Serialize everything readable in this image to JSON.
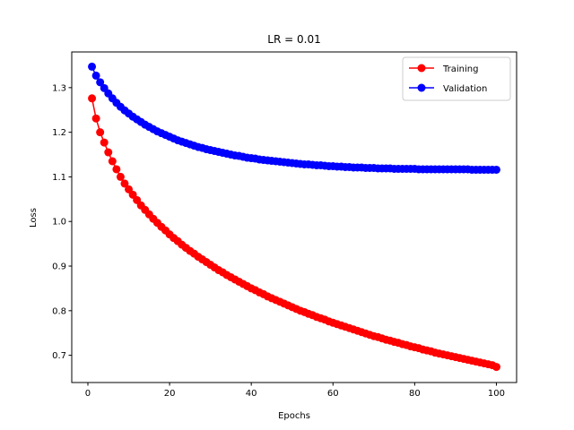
{
  "chart_data": {
    "type": "line",
    "title": "LR = 0.01",
    "xlabel": "Epochs",
    "ylabel": "Loss",
    "xlim": [
      -3.95,
      104.95
    ],
    "ylim": [
      0.639,
      1.38
    ],
    "xticks": [
      0,
      20,
      40,
      60,
      80,
      100
    ],
    "yticks": [
      0.7,
      0.8,
      0.9,
      1.0,
      1.1,
      1.2,
      1.3
    ],
    "ytick_labels": [
      "0.7",
      "0.8",
      "0.9",
      "1.0",
      "1.1",
      "1.2",
      "1.3"
    ],
    "legend_position": "upper right",
    "x": [
      1,
      2,
      3,
      4,
      5,
      6,
      7,
      8,
      9,
      10,
      11,
      12,
      13,
      14,
      15,
      16,
      17,
      18,
      19,
      20,
      21,
      22,
      23,
      24,
      25,
      26,
      27,
      28,
      29,
      30,
      31,
      32,
      33,
      34,
      35,
      36,
      37,
      38,
      39,
      40,
      41,
      42,
      43,
      44,
      45,
      46,
      47,
      48,
      49,
      50,
      51,
      52,
      53,
      54,
      55,
      56,
      57,
      58,
      59,
      60,
      61,
      62,
      63,
      64,
      65,
      66,
      67,
      68,
      69,
      70,
      71,
      72,
      73,
      74,
      75,
      76,
      77,
      78,
      79,
      80,
      81,
      82,
      83,
      84,
      85,
      86,
      87,
      88,
      89,
      90,
      91,
      92,
      93,
      94,
      95,
      96,
      97,
      98,
      99,
      100
    ],
    "series": [
      {
        "name": "Training",
        "color": "#ff0000",
        "values": [
          1.276,
          1.231,
          1.2,
          1.177,
          1.155,
          1.135,
          1.117,
          1.1,
          1.085,
          1.072,
          1.06,
          1.048,
          1.036,
          1.026,
          1.016,
          1.006,
          0.997,
          0.988,
          0.98,
          0.971,
          0.963,
          0.956,
          0.948,
          0.941,
          0.934,
          0.928,
          0.921,
          0.915,
          0.909,
          0.903,
          0.897,
          0.891,
          0.886,
          0.88,
          0.875,
          0.87,
          0.865,
          0.86,
          0.855,
          0.85,
          0.846,
          0.841,
          0.837,
          0.832,
          0.828,
          0.824,
          0.82,
          0.816,
          0.812,
          0.808,
          0.804,
          0.8,
          0.797,
          0.793,
          0.79,
          0.786,
          0.783,
          0.78,
          0.776,
          0.773,
          0.77,
          0.767,
          0.764,
          0.761,
          0.758,
          0.755,
          0.752,
          0.749,
          0.746,
          0.743,
          0.741,
          0.738,
          0.735,
          0.733,
          0.73,
          0.728,
          0.725,
          0.723,
          0.72,
          0.718,
          0.716,
          0.713,
          0.711,
          0.709,
          0.706,
          0.704,
          0.702,
          0.7,
          0.698,
          0.696,
          0.694,
          0.692,
          0.69,
          0.688,
          0.686,
          0.684,
          0.682,
          0.68,
          0.678,
          0.674
        ]
      },
      {
        "name": "Validation",
        "color": "#0000ff",
        "values": [
          1.347,
          1.327,
          1.312,
          1.299,
          1.287,
          1.276,
          1.266,
          1.257,
          1.249,
          1.242,
          1.235,
          1.229,
          1.223,
          1.217,
          1.212,
          1.207,
          1.202,
          1.198,
          1.194,
          1.19,
          1.186,
          1.182,
          1.179,
          1.176,
          1.173,
          1.17,
          1.167,
          1.165,
          1.162,
          1.16,
          1.158,
          1.156,
          1.154,
          1.152,
          1.15,
          1.148,
          1.147,
          1.145,
          1.143,
          1.142,
          1.141,
          1.139,
          1.138,
          1.137,
          1.136,
          1.135,
          1.134,
          1.133,
          1.132,
          1.131,
          1.13,
          1.129,
          1.128,
          1.128,
          1.127,
          1.126,
          1.126,
          1.125,
          1.124,
          1.124,
          1.123,
          1.123,
          1.122,
          1.122,
          1.121,
          1.121,
          1.121,
          1.12,
          1.12,
          1.12,
          1.119,
          1.119,
          1.119,
          1.119,
          1.118,
          1.118,
          1.118,
          1.118,
          1.118,
          1.118,
          1.117,
          1.117,
          1.117,
          1.117,
          1.117,
          1.117,
          1.117,
          1.117,
          1.117,
          1.117,
          1.117,
          1.117,
          1.117,
          1.116,
          1.116,
          1.116,
          1.116,
          1.116,
          1.116,
          1.116
        ]
      }
    ]
  }
}
